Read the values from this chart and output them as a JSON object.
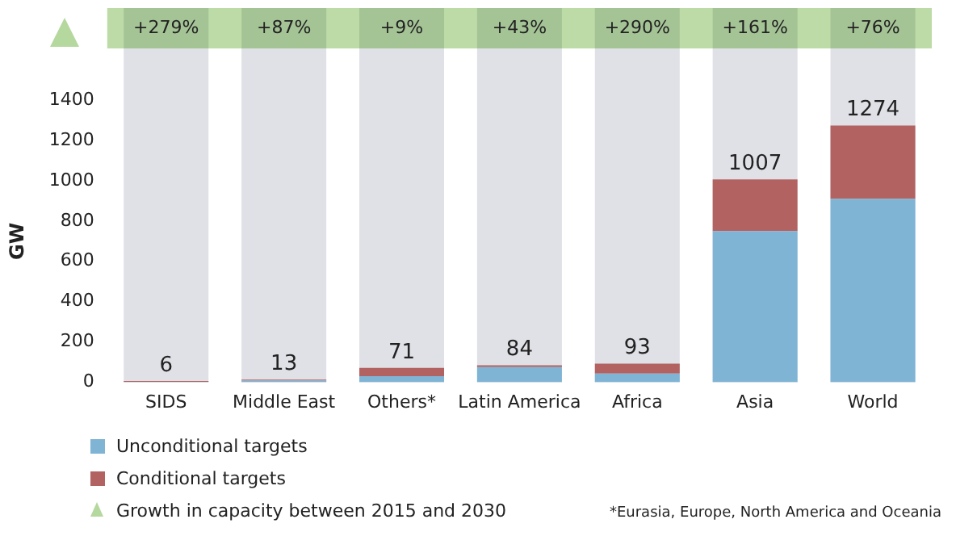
{
  "chart_data": {
    "type": "bar",
    "stacked": true,
    "ylabel": "GW",
    "categories": [
      "SIDS",
      "Middle East",
      "Others*",
      "Latin America",
      "Africa",
      "Asia",
      "World"
    ],
    "series": [
      {
        "name": "Unconditional targets",
        "color": "#7fb4d5",
        "values": [
          1,
          8,
          30,
          75,
          43,
          750,
          910
        ]
      },
      {
        "name": "Conditional targets",
        "color": "#b36262",
        "values": [
          5,
          5,
          41,
          9,
          50,
          257,
          364
        ]
      }
    ],
    "totals": [
      "6",
      "13",
      "71",
      "84",
      "93",
      "1007",
      "1274"
    ],
    "ylim": [
      0,
      1400
    ],
    "yticks": [
      0,
      200,
      400,
      600,
      800,
      1000,
      1200,
      1400
    ],
    "grid": false,
    "legend": "bottom",
    "annotations": [
      "+279%",
      "+87%",
      "+9%",
      "+43%",
      "+290%",
      "+161%",
      "+76%",
      "Growth in capacity between 2015 and 2030",
      "*Eurasia, Europe, North America and Oceania"
    ]
  }
}
